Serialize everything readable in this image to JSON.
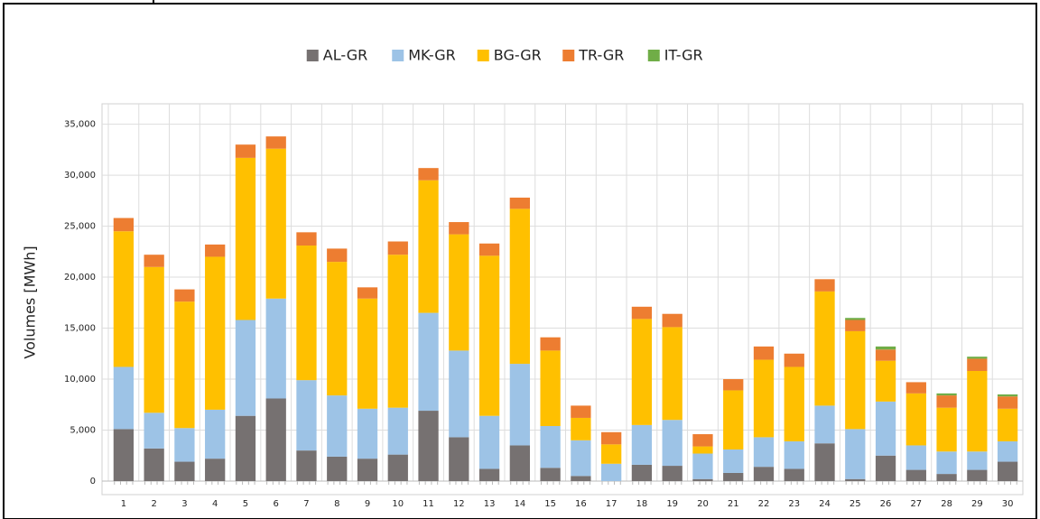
{
  "chart_data": {
    "type": "stacked-bar",
    "y_label": "Volumes [MWh]",
    "categories": [
      "1",
      "2",
      "3",
      "4",
      "5",
      "6",
      "7",
      "8",
      "9",
      "10",
      "11",
      "12",
      "13",
      "14",
      "15",
      "16",
      "17",
      "18",
      "19",
      "20",
      "21",
      "22",
      "23",
      "24",
      "25",
      "26",
      "27",
      "28",
      "29",
      "30"
    ],
    "series": [
      {
        "name": "AL-GR",
        "color": "#767171",
        "values": [
          5100,
          3200,
          1900,
          2200,
          6400,
          8100,
          3000,
          2400,
          2200,
          2600,
          6900,
          4300,
          1200,
          3500,
          1300,
          500,
          0,
          1600,
          1500,
          200,
          800,
          1400,
          1200,
          3700,
          200,
          2500,
          1100,
          700,
          1100,
          1900
        ]
      },
      {
        "name": "MK-GR",
        "color": "#9dc3e6",
        "values": [
          6100,
          3500,
          3300,
          4800,
          9400,
          9800,
          6900,
          6000,
          4900,
          4600,
          9600,
          8500,
          5200,
          8000,
          4100,
          3500,
          1700,
          3900,
          4500,
          2500,
          2300,
          2900,
          2700,
          3700,
          4900,
          5300,
          2400,
          2200,
          1800,
          2000
        ]
      },
      {
        "name": "BG-GR",
        "color": "#ffc000",
        "values": [
          13300,
          14300,
          12400,
          15000,
          15900,
          14700,
          13200,
          13100,
          10800,
          15000,
          13000,
          11400,
          15700,
          15200,
          7400,
          2200,
          1900,
          10400,
          9100,
          700,
          5800,
          7600,
          7300,
          11200,
          9600,
          4000,
          5100,
          4300,
          7900,
          3200
        ]
      },
      {
        "name": "TR-GR",
        "color": "#ed7d31",
        "values": [
          1300,
          1200,
          1200,
          1200,
          1300,
          1200,
          1300,
          1300,
          1100,
          1300,
          1200,
          1200,
          1200,
          1100,
          1300,
          1200,
          1200,
          1200,
          1300,
          1200,
          1100,
          1300,
          1300,
          1200,
          1100,
          1100,
          1100,
          1200,
          1200,
          1200
        ]
      },
      {
        "name": "IT-GR",
        "color": "#70ad47",
        "values": [
          0,
          0,
          0,
          0,
          0,
          0,
          0,
          0,
          0,
          0,
          0,
          0,
          0,
          0,
          0,
          0,
          0,
          0,
          0,
          0,
          0,
          0,
          0,
          0,
          200,
          300,
          0,
          200,
          200,
          200
        ]
      }
    ],
    "ylim": [
      0,
      37000
    ],
    "yticks": [
      0,
      {
        "value": 5000,
        "label": "5,000"
      },
      {
        "value": 10000,
        "label": "10,000"
      },
      {
        "value": 15000,
        "label": "15,000"
      },
      {
        "value": 20000,
        "label": "20,000"
      },
      {
        "value": 25000,
        "label": "25,000"
      },
      {
        "value": 30000,
        "label": "30,000"
      },
      {
        "value": 35000,
        "label": "35,000"
      }
    ],
    "grid": true
  }
}
